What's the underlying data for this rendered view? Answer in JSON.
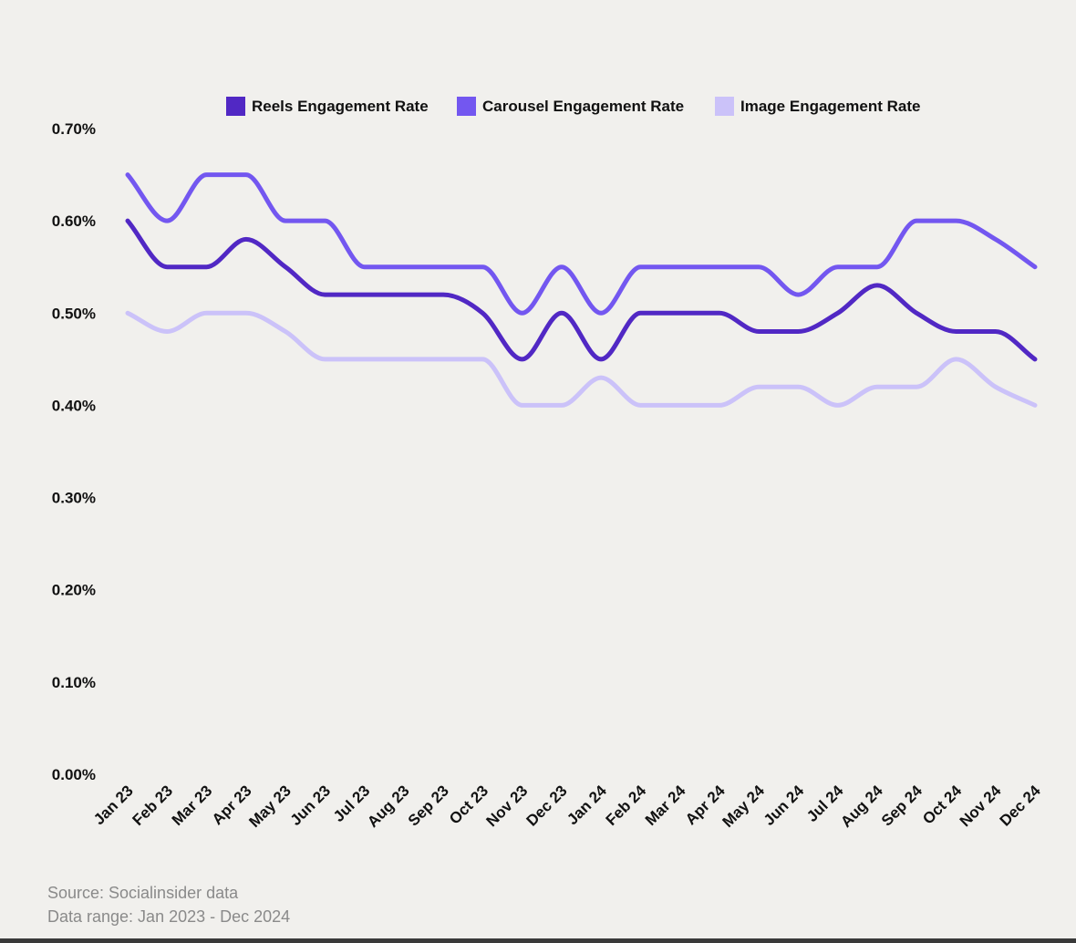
{
  "chart_data": {
    "type": "line",
    "title": "",
    "xlabel": "",
    "ylabel": "",
    "ylim": [
      0,
      0.7
    ],
    "legend_position": "top",
    "grid": false,
    "y_ticks": [
      "0.00%",
      "0.10%",
      "0.20%",
      "0.30%",
      "0.40%",
      "0.50%",
      "0.60%",
      "0.70%"
    ],
    "categories": [
      "Jan 23",
      "Feb 23",
      "Mar 23",
      "Apr 23",
      "May 23",
      "Jun 23",
      "Jul 23",
      "Aug 23",
      "Sep 23",
      "Oct 23",
      "Nov 23",
      "Dec 23",
      "Jan 24",
      "Feb 24",
      "Mar 24",
      "Apr 24",
      "May 24",
      "Jun 24",
      "Jul 24",
      "Aug 24",
      "Sep 24",
      "Oct 24",
      "Nov 24",
      "Dec 24"
    ],
    "series": [
      {
        "name": "Reels Engagement Rate",
        "color": "#5128c4",
        "values": [
          0.6,
          0.55,
          0.55,
          0.58,
          0.55,
          0.52,
          0.52,
          0.52,
          0.52,
          0.5,
          0.45,
          0.5,
          0.45,
          0.5,
          0.5,
          0.5,
          0.48,
          0.48,
          0.5,
          0.53,
          0.5,
          0.48,
          0.48,
          0.45
        ]
      },
      {
        "name": "Carousel Engagement Rate",
        "color": "#7357f0",
        "values": [
          0.65,
          0.6,
          0.65,
          0.65,
          0.6,
          0.6,
          0.55,
          0.55,
          0.55,
          0.55,
          0.5,
          0.55,
          0.5,
          0.55,
          0.55,
          0.55,
          0.55,
          0.52,
          0.55,
          0.55,
          0.6,
          0.6,
          0.58,
          0.55
        ]
      },
      {
        "name": "Image Engagement Rate",
        "color": "#cbc2f9",
        "values": [
          0.5,
          0.48,
          0.5,
          0.5,
          0.48,
          0.45,
          0.45,
          0.45,
          0.45,
          0.45,
          0.4,
          0.4,
          0.43,
          0.4,
          0.4,
          0.4,
          0.42,
          0.42,
          0.4,
          0.42,
          0.42,
          0.45,
          0.42,
          0.4
        ]
      }
    ]
  },
  "footer": {
    "source": "Source: Socialinsider data",
    "range": "Data range: Jan 2023 - Dec 2024"
  }
}
